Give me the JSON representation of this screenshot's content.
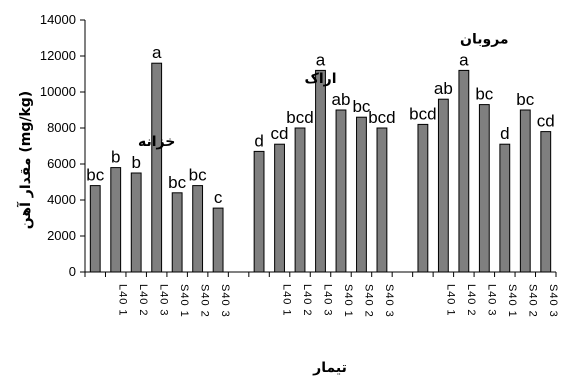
{
  "chart_data": {
    "type": "bar",
    "title": "",
    "xlabel": "تیمار",
    "ylabel": "(mg/kg) مقدار آهن",
    "ylim": [
      0,
      14000
    ],
    "yticks": [
      0,
      2000,
      4000,
      6000,
      8000,
      10000,
      12000,
      14000
    ],
    "grid": false,
    "legend": "none",
    "bar_color": "#7f7f7f",
    "groups": [
      {
        "name": "خزانه",
        "categories": [
          "",
          "L40 1",
          "L40 2",
          "L40 3",
          "S40 1",
          "S40 2",
          "S40 3"
        ],
        "values": [
          4800,
          5800,
          5500,
          11600,
          4400,
          4800,
          3550
        ],
        "letters": [
          "bc",
          "b",
          "b",
          "a",
          "bc",
          "bc",
          "c"
        ]
      },
      {
        "name": "اراک",
        "categories": [
          "",
          "L40 1",
          "L40 2",
          "L40 3",
          "S40 1",
          "S40 2",
          "S40 3"
        ],
        "values": [
          6700,
          7100,
          8000,
          11200,
          9000,
          8600,
          8000
        ],
        "letters": [
          "d",
          "cd",
          "bcd",
          "a",
          "ab",
          "bc",
          "bcd"
        ]
      },
      {
        "name": "مروبان",
        "categories": [
          "",
          "L40 1",
          "L40 2",
          "L40 3",
          "S40 1",
          "S40 2",
          "S40 3"
        ],
        "values": [
          8200,
          9600,
          11200,
          9300,
          7100,
          9000,
          7800
        ],
        "letters": [
          "bcd",
          "ab",
          "a",
          "bc",
          "d",
          "bc",
          "cd"
        ]
      }
    ]
  }
}
